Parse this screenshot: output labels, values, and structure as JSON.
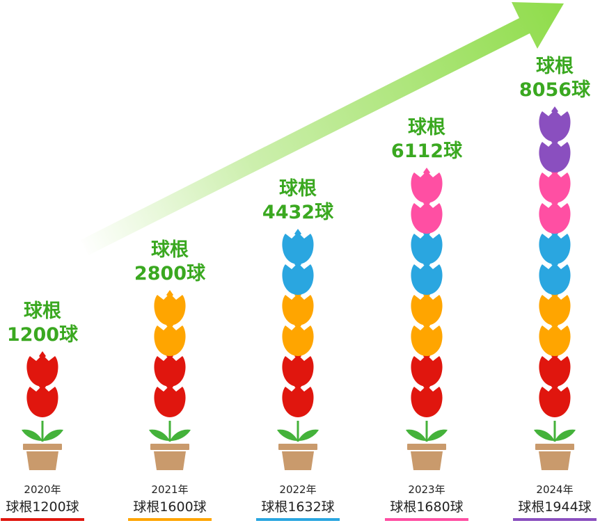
{
  "colors": {
    "arrow": "#8fdc4a",
    "total_text": "#3aa820",
    "pot": "#c99a6c",
    "leaves": "#44b23a"
  },
  "icons": {
    "unit": "tulip-bulb-icon",
    "pot": "flower-pot-icon",
    "trend": "growth-arrow-icon"
  },
  "chart_data": {
    "type": "bar",
    "categories": [
      "2020年",
      "2021年",
      "2022年",
      "2023年",
      "2024年"
    ],
    "series": [
      {
        "values": [
          1200,
          1600,
          1632,
          1680,
          1944
        ],
        "colors": [
          "#e0160e",
          "#ffa500",
          "#2aa6e0",
          "#ff4fa3",
          "#8a4fbf"
        ]
      }
    ],
    "yearly_labels": [
      "球根1200球",
      "球根1600球",
      "球根1632球",
      "球根1680球",
      "球根1944球"
    ],
    "cumulative_totals": [
      1200,
      2800,
      4432,
      6112,
      8056
    ],
    "total_labels": [
      {
        "line1": "球根",
        "line2": "1200球"
      },
      {
        "line1": "球根",
        "line2": "2800球"
      },
      {
        "line1": "球根",
        "line2": "4432球"
      },
      {
        "line1": "球根",
        "line2": "6112球"
      },
      {
        "line1": "球根",
        "line2": "8056球"
      }
    ],
    "icons_per_year": [
      2,
      2,
      2,
      2,
      2
    ]
  }
}
